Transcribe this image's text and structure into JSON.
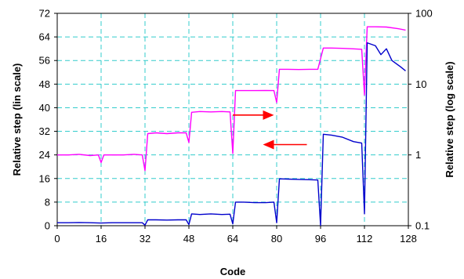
{
  "chart_data": {
    "type": "line",
    "title": "",
    "xlabel": "Code",
    "ylabel_left": "Relative step (lin scale)",
    "ylabel_right": "Relative step (log scale)",
    "xlim": [
      0,
      128
    ],
    "ylim_left": [
      0,
      72
    ],
    "ylim_right": [
      0.1,
      100
    ],
    "right_axis_scale": "log",
    "grid": true,
    "grid_color": "#33CCCC",
    "legend": "none",
    "x_ticks": [
      "0",
      "16",
      "32",
      "48",
      "64",
      "80",
      "96",
      "112",
      "128"
    ],
    "y_left_ticks": [
      "0",
      "8",
      "16",
      "24",
      "32",
      "40",
      "48",
      "56",
      "64",
      "72"
    ],
    "y_right_ticks": [
      "0.1",
      "1",
      "10",
      "100"
    ],
    "series": [
      {
        "axis": "right",
        "color": "#FF00FF",
        "points": [
          [
            0,
            1.0
          ],
          [
            4,
            1.0
          ],
          [
            8,
            1.02
          ],
          [
            12,
            0.98
          ],
          [
            15,
            1.0
          ],
          [
            16,
            0.78
          ],
          [
            17,
            1.0
          ],
          [
            20,
            1.0
          ],
          [
            24,
            1.0
          ],
          [
            28,
            1.02
          ],
          [
            31,
            1.0
          ],
          [
            32,
            0.6
          ],
          [
            33,
            2.0
          ],
          [
            36,
            2.05
          ],
          [
            40,
            2.0
          ],
          [
            44,
            2.05
          ],
          [
            47,
            2.05
          ],
          [
            48,
            1.5
          ],
          [
            49,
            4.0
          ],
          [
            52,
            4.1
          ],
          [
            56,
            4.05
          ],
          [
            60,
            4.1
          ],
          [
            63,
            4.05
          ],
          [
            64,
            1.05
          ],
          [
            65,
            8.1
          ],
          [
            68,
            8.1
          ],
          [
            72,
            8.1
          ],
          [
            76,
            8.15
          ],
          [
            79,
            8.1
          ],
          [
            80,
            5.5
          ],
          [
            81,
            16.2
          ],
          [
            84,
            16.2
          ],
          [
            88,
            16.1
          ],
          [
            92,
            16.2
          ],
          [
            95,
            16.2
          ],
          [
            97,
            32.3
          ],
          [
            100,
            32.3
          ],
          [
            104,
            32.0
          ],
          [
            108,
            31.5
          ],
          [
            111,
            31.0
          ],
          [
            112,
            7.0
          ],
          [
            113,
            64.5
          ],
          [
            116,
            64.5
          ],
          [
            120,
            64.0
          ],
          [
            124,
            61.0
          ],
          [
            127,
            58.0
          ]
        ]
      },
      {
        "axis": "left",
        "color": "#0000CC",
        "points": [
          [
            0,
            1.0
          ],
          [
            4,
            1.0
          ],
          [
            8,
            1.1
          ],
          [
            12,
            1.0
          ],
          [
            16,
            0.9
          ],
          [
            20,
            1.0
          ],
          [
            24,
            1.0
          ],
          [
            28,
            1.0
          ],
          [
            31,
            1.0
          ],
          [
            32,
            0.2
          ],
          [
            33,
            2.0
          ],
          [
            36,
            2.0
          ],
          [
            40,
            1.9
          ],
          [
            44,
            2.0
          ],
          [
            47,
            2.0
          ],
          [
            48,
            0.4
          ],
          [
            49,
            4.0
          ],
          [
            52,
            3.8
          ],
          [
            56,
            4.0
          ],
          [
            60,
            3.8
          ],
          [
            63,
            3.9
          ],
          [
            64,
            0.6
          ],
          [
            65,
            8.0
          ],
          [
            68,
            8.0
          ],
          [
            72,
            7.8
          ],
          [
            76,
            7.8
          ],
          [
            79,
            8.0
          ],
          [
            80,
            1.0
          ],
          [
            81,
            15.9
          ],
          [
            84,
            15.8
          ],
          [
            88,
            15.7
          ],
          [
            92,
            15.6
          ],
          [
            95,
            15.5
          ],
          [
            96,
            0.0
          ],
          [
            97,
            31.0
          ],
          [
            100,
            30.7
          ],
          [
            104,
            30.0
          ],
          [
            108,
            28.5
          ],
          [
            111,
            28.0
          ],
          [
            112,
            4.0
          ],
          [
            113,
            62.0
          ],
          [
            116,
            61.0
          ],
          [
            118,
            58.0
          ],
          [
            120,
            60.0
          ],
          [
            122,
            56.0
          ],
          [
            125,
            54.0
          ],
          [
            127,
            52.5
          ]
        ]
      }
    ],
    "annotations": [
      {
        "type": "arrow",
        "direction": "right",
        "color": "#FF0000",
        "from": [
          64,
          37.5
        ],
        "to": [
          79,
          37.5
        ]
      },
      {
        "type": "arrow",
        "direction": "left",
        "color": "#FF0000",
        "from": [
          91,
          27.5
        ],
        "to": [
          75,
          27.5
        ]
      }
    ]
  }
}
